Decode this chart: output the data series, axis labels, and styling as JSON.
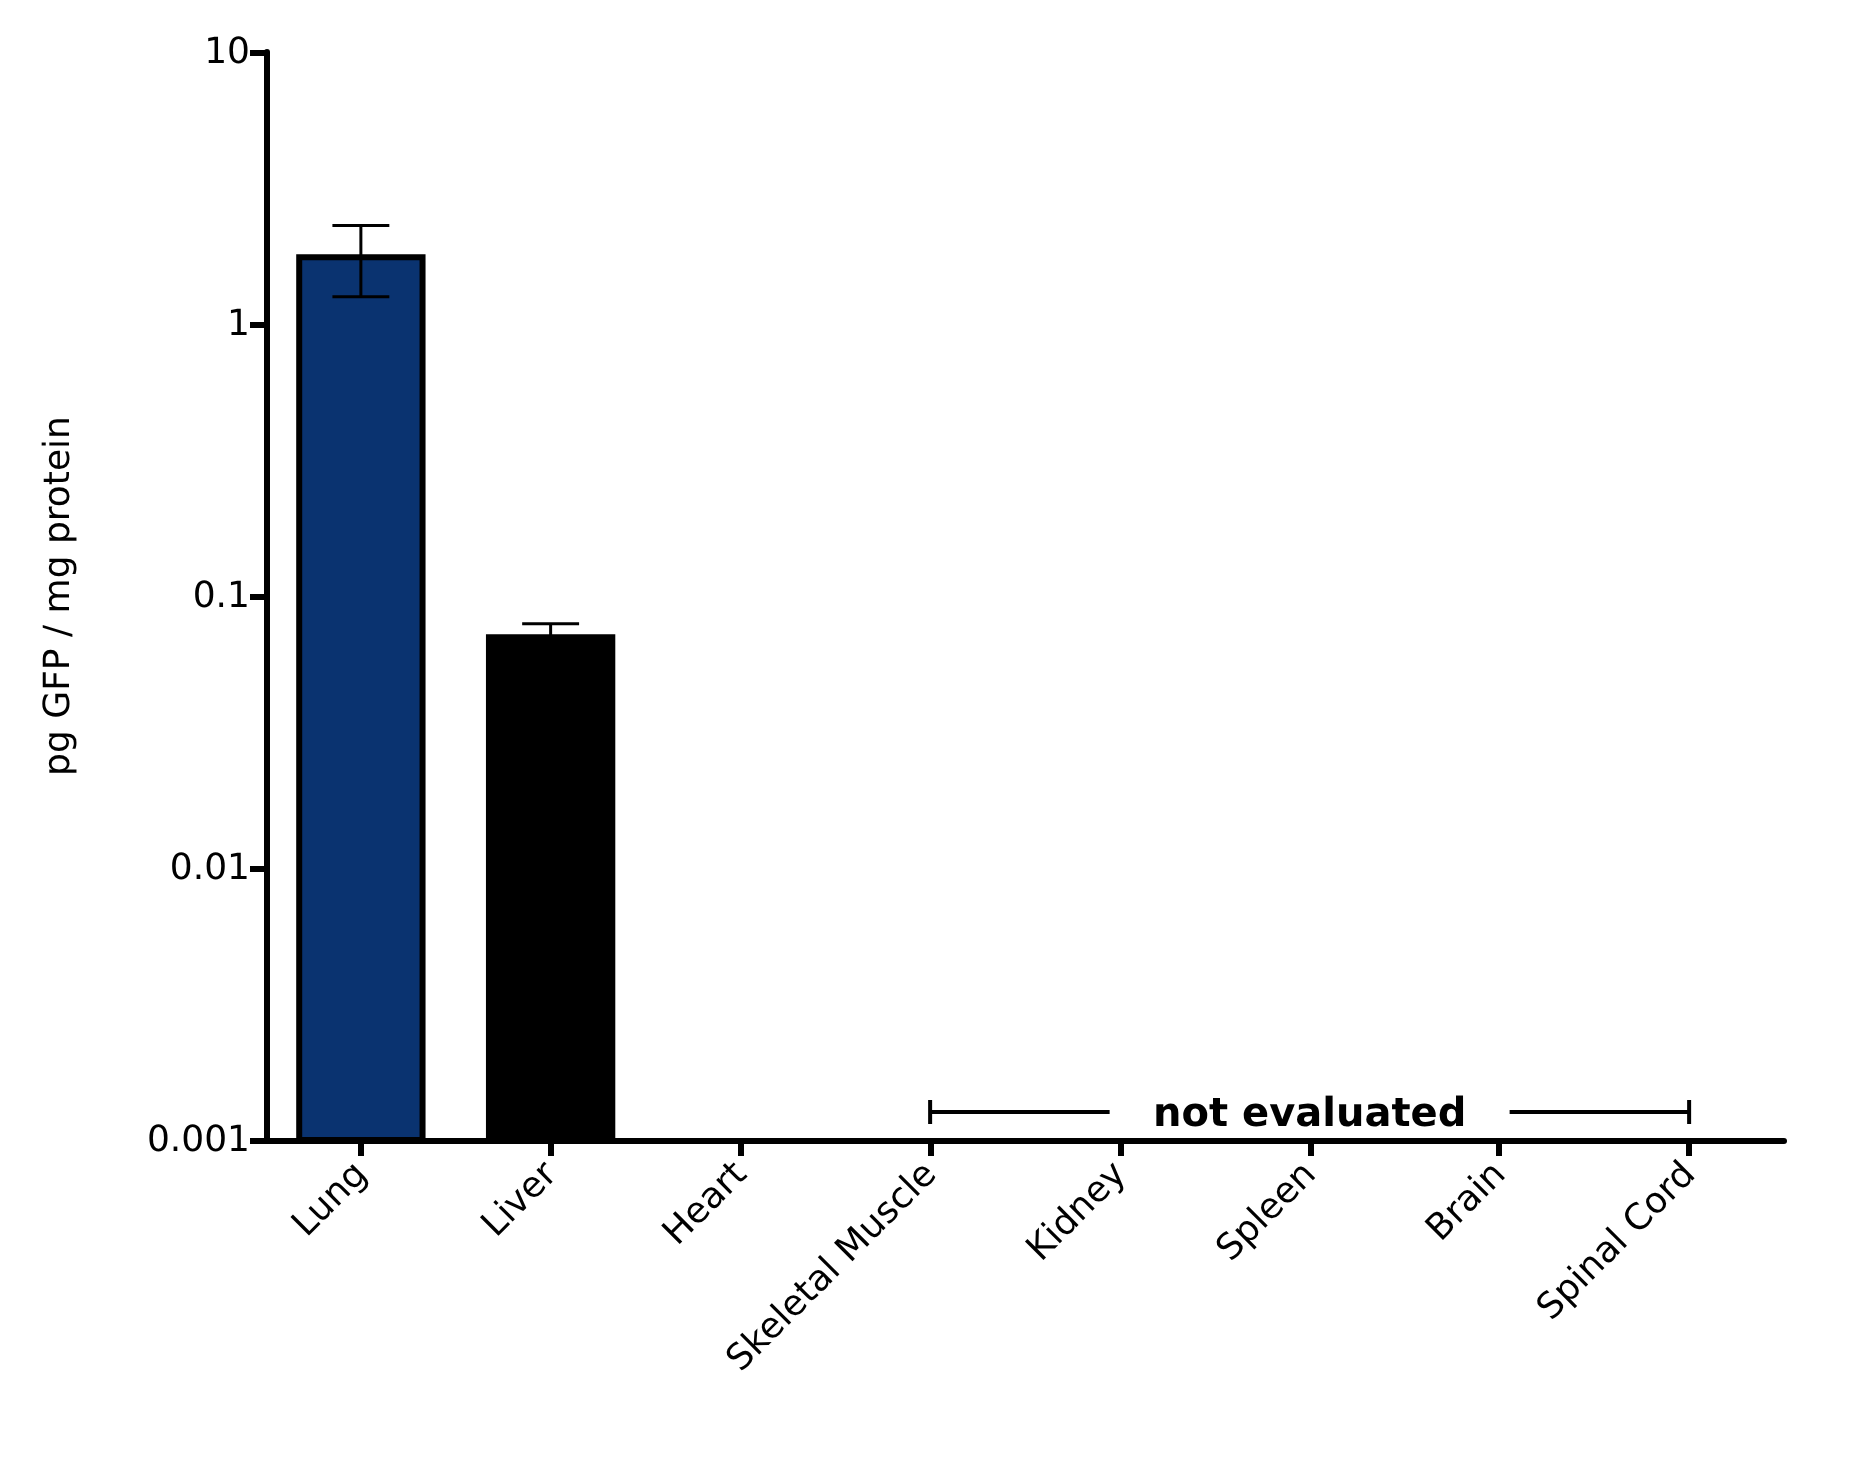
{
  "chart_data": {
    "type": "bar",
    "ylabel": "pg GFP / mg protein",
    "categories": [
      "Lung",
      "Liver",
      "Heart",
      "Skeletal Muscle",
      "Kidney",
      "Spleen",
      "Brain",
      "Spinal Cord"
    ],
    "values": [
      1.76,
      0.0705,
      null,
      null,
      null,
      null,
      null,
      null
    ],
    "colors": [
      "#0a3370",
      "#000000",
      null,
      null,
      null,
      null,
      null,
      null
    ],
    "errors": [
      [
        1.26,
        2.3
      ],
      [
        0.0705,
        0.079
      ],
      null,
      null,
      null,
      null,
      null,
      null
    ],
    "log": "y",
    "ylim": [
      0.001,
      10
    ],
    "yticks": [
      0.001,
      0.01,
      0.1,
      1,
      10
    ],
    "grid": false,
    "annotations": [
      "not evaluated"
    ]
  }
}
